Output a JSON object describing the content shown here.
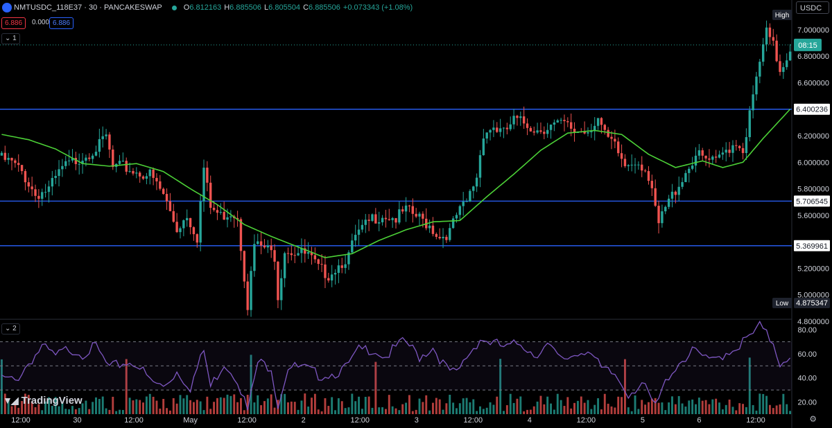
{
  "header": {
    "symbol": "NMTUSDC_118E37 · 30 · PANCAKESWAP",
    "open_label": "O",
    "open": "6.812163",
    "high_label": "H",
    "high": "6.885506",
    "low_label": "L",
    "low": "6.805504",
    "close_label": "C",
    "close": "6.885506",
    "change": "+0.073343 (+1.08%)"
  },
  "quote": {
    "bid": "6.886",
    "spread": "0.000",
    "ask": "6.886"
  },
  "panes": {
    "main_tag": "1",
    "rsi_tag": "2"
  },
  "currency_button": "USDC",
  "brand": "TradingView",
  "colors": {
    "up": "#26a69a",
    "down": "#ef5350",
    "ma": "#4cd137",
    "level": "#2962ff",
    "rsi": "#7e57c2",
    "grid": "#2a2e39"
  },
  "chart_data": {
    "type": "candlestick",
    "price_axis": {
      "range": [
        4.82,
        7.12
      ],
      "ticks": [
        "7.000000",
        "6.800000",
        "6.600000",
        "6.200000",
        "6.000000",
        "5.800000",
        "5.600000",
        "5.200000",
        "5.000000",
        "4.800000"
      ]
    },
    "time_axis": {
      "labels": [
        "12:00",
        "30",
        "12:00",
        "May",
        "12:00",
        "2",
        "12:00",
        "3",
        "12:00",
        "4",
        "12:00",
        "5",
        "6",
        "12:00"
      ]
    },
    "horizontal_levels": [
      {
        "value": 6.400236,
        "label": "6.400236"
      },
      {
        "value": 5.706545,
        "label": "5.706545"
      },
      {
        "value": 5.369961,
        "label": "5.369961"
      }
    ],
    "markers": {
      "high_label": "High",
      "high_value": "7.1",
      "low_label": "Low",
      "low_value": "4.875347",
      "current_price": 6.885506,
      "countdown": "08:15"
    },
    "close_anchors": [
      [
        0,
        6.05
      ],
      [
        3,
        6.02
      ],
      [
        6,
        5.95
      ],
      [
        10,
        5.78
      ],
      [
        14,
        5.82
      ],
      [
        18,
        5.98
      ],
      [
        22,
        6.04
      ],
      [
        26,
        6.1
      ],
      [
        29,
        6.15
      ],
      [
        31,
        6.22
      ],
      [
        33,
        5.98
      ],
      [
        36,
        5.99
      ],
      [
        40,
        5.95
      ],
      [
        44,
        5.93
      ],
      [
        48,
        5.78
      ],
      [
        52,
        5.52
      ],
      [
        55,
        5.63
      ],
      [
        58,
        5.46
      ],
      [
        60,
        5.98
      ],
      [
        62,
        5.68
      ],
      [
        65,
        5.62
      ],
      [
        68,
        5.65
      ],
      [
        70,
        5.62
      ],
      [
        73,
        4.95
      ],
      [
        75,
        5.4
      ],
      [
        78,
        5.38
      ],
      [
        81,
        5.32
      ],
      [
        82,
        5.02
      ],
      [
        84,
        5.37
      ],
      [
        87,
        5.35
      ],
      [
        91,
        5.32
      ],
      [
        94,
        5.22
      ],
      [
        97,
        5.18
      ],
      [
        100,
        5.25
      ],
      [
        103,
        5.32
      ],
      [
        105,
        5.46
      ],
      [
        110,
        5.6
      ],
      [
        113,
        5.63
      ],
      [
        117,
        5.6
      ],
      [
        120,
        5.66
      ],
      [
        124,
        5.6
      ],
      [
        127,
        5.55
      ],
      [
        130,
        5.46
      ],
      [
        133,
        5.5
      ],
      [
        135,
        5.62
      ],
      [
        138,
        5.72
      ],
      [
        141,
        5.92
      ],
      [
        143,
        6.25
      ],
      [
        146,
        6.29
      ],
      [
        149,
        6.24
      ],
      [
        152,
        6.34
      ],
      [
        155,
        6.32
      ],
      [
        159,
        6.27
      ],
      [
        163,
        6.3
      ],
      [
        167,
        6.31
      ],
      [
        170,
        6.26
      ],
      [
        174,
        6.27
      ],
      [
        177,
        6.36
      ],
      [
        179,
        6.22
      ],
      [
        182,
        6.14
      ],
      [
        185,
        6.0
      ],
      [
        188,
        6.05
      ],
      [
        191,
        5.98
      ],
      [
        193,
        5.78
      ],
      [
        195,
        5.55
      ],
      [
        197,
        5.68
      ],
      [
        200,
        5.82
      ],
      [
        203,
        5.95
      ],
      [
        206,
        6.08
      ],
      [
        209,
        6.04
      ],
      [
        212,
        6.02
      ],
      [
        215,
        6.12
      ],
      [
        218,
        6.18
      ],
      [
        220,
        6.12
      ],
      [
        222,
        6.38
      ],
      [
        225,
        6.78
      ],
      [
        227,
        7.0
      ],
      [
        229,
        6.9
      ],
      [
        231,
        6.72
      ],
      [
        234,
        6.88
      ]
    ],
    "ma_anchors": [
      [
        0,
        6.21
      ],
      [
        8,
        6.17
      ],
      [
        16,
        6.1
      ],
      [
        24,
        5.99
      ],
      [
        32,
        5.97
      ],
      [
        40,
        5.99
      ],
      [
        48,
        5.93
      ],
      [
        56,
        5.8
      ],
      [
        64,
        5.68
      ],
      [
        72,
        5.53
      ],
      [
        80,
        5.44
      ],
      [
        88,
        5.36
      ],
      [
        96,
        5.28
      ],
      [
        104,
        5.31
      ],
      [
        112,
        5.41
      ],
      [
        120,
        5.49
      ],
      [
        128,
        5.55
      ],
      [
        136,
        5.56
      ],
      [
        144,
        5.74
      ],
      [
        152,
        5.91
      ],
      [
        160,
        6.09
      ],
      [
        168,
        6.22
      ],
      [
        176,
        6.24
      ],
      [
        184,
        6.21
      ],
      [
        192,
        6.06
      ],
      [
        200,
        5.96
      ],
      [
        208,
        6.01
      ],
      [
        214,
        5.96
      ],
      [
        220,
        6.0
      ],
      [
        226,
        6.18
      ],
      [
        234,
        6.4
      ]
    ],
    "rsi": {
      "ticks": [
        "80.00",
        "60.00",
        "40.00",
        "20.00"
      ],
      "upper_band": 70,
      "lower_band": 30,
      "mid": 50,
      "range": [
        10,
        88
      ],
      "anchors": [
        [
          0,
          42
        ],
        [
          4,
          40
        ],
        [
          8,
          55
        ],
        [
          12,
          68
        ],
        [
          16,
          60
        ],
        [
          20,
          67
        ],
        [
          24,
          63
        ],
        [
          28,
          68
        ],
        [
          32,
          50
        ],
        [
          36,
          55
        ],
        [
          40,
          55
        ],
        [
          44,
          40
        ],
        [
          48,
          35
        ],
        [
          52,
          48
        ],
        [
          56,
          35
        ],
        [
          60,
          65
        ],
        [
          62,
          35
        ],
        [
          66,
          55
        ],
        [
          70,
          42
        ],
        [
          73,
          15
        ],
        [
          76,
          55
        ],
        [
          80,
          52
        ],
        [
          82,
          20
        ],
        [
          85,
          52
        ],
        [
          90,
          50
        ],
        [
          94,
          45
        ],
        [
          98,
          46
        ],
        [
          102,
          50
        ],
        [
          106,
          65
        ],
        [
          110,
          67
        ],
        [
          114,
          60
        ],
        [
          118,
          70
        ],
        [
          120,
          72
        ],
        [
          124,
          60
        ],
        [
          128,
          68
        ],
        [
          132,
          50
        ],
        [
          135,
          45
        ],
        [
          138,
          60
        ],
        [
          142,
          75
        ],
        [
          146,
          71
        ],
        [
          150,
          67
        ],
        [
          154,
          72
        ],
        [
          158,
          62
        ],
        [
          162,
          69
        ],
        [
          166,
          57
        ],
        [
          170,
          62
        ],
        [
          174,
          67
        ],
        [
          178,
          49
        ],
        [
          182,
          45
        ],
        [
          186,
          30
        ],
        [
          190,
          38
        ],
        [
          194,
          18
        ],
        [
          198,
          45
        ],
        [
          202,
          58
        ],
        [
          206,
          65
        ],
        [
          210,
          55
        ],
        [
          214,
          62
        ],
        [
          218,
          68
        ],
        [
          222,
          76
        ],
        [
          225,
          85
        ],
        [
          227,
          78
        ],
        [
          229,
          72
        ],
        [
          231,
          55
        ],
        [
          234,
          62
        ]
      ]
    }
  }
}
